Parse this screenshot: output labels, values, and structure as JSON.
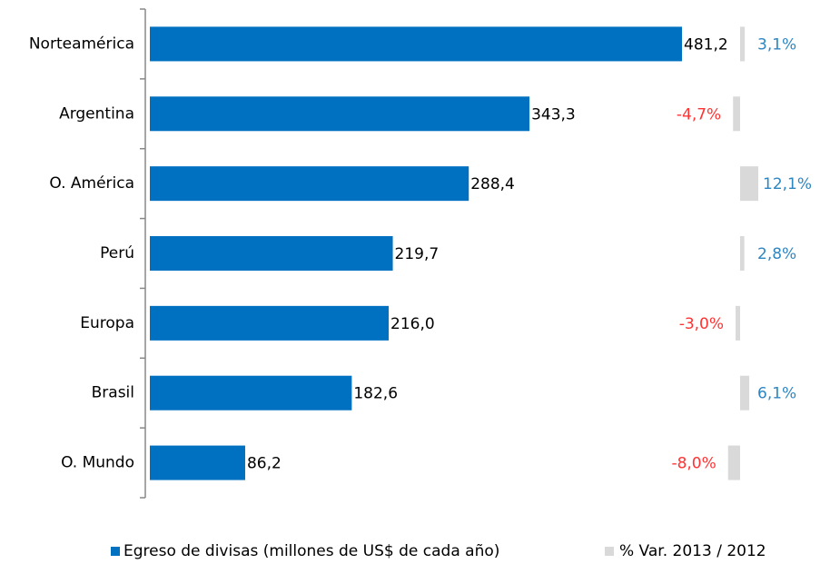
{
  "chart_data": {
    "type": "bar",
    "orientation": "horizontal",
    "categories": [
      "Norteamérica",
      "Argentina",
      "O. América",
      "Perú",
      "Europa",
      "Brasil",
      "O. Mundo"
    ],
    "series": [
      {
        "name": "Egreso de divisas (millones de US$ de cada año)",
        "color": "#0070c0",
        "values": [
          481.2,
          343.3,
          288.4,
          219.7,
          216.0,
          182.6,
          86.2
        ],
        "value_labels": [
          "481,2",
          "343,3",
          "288,4",
          "219,7",
          "216,0",
          "182,6",
          "86,2"
        ]
      },
      {
        "name": "% Var. 2013 / 2012",
        "color": "#d9d9d9",
        "values": [
          3.1,
          -4.7,
          12.1,
          2.8,
          -3.0,
          6.1,
          -8.0
        ],
        "value_labels": [
          "3,1%",
          "-4,7%",
          "12,1%",
          "2,8%",
          "-3,0%",
          "6,1%",
          "-8,0%"
        ]
      }
    ],
    "positive_label_color": "#2e86c1",
    "negative_label_color": "#ff3333",
    "legend": "bottom"
  }
}
